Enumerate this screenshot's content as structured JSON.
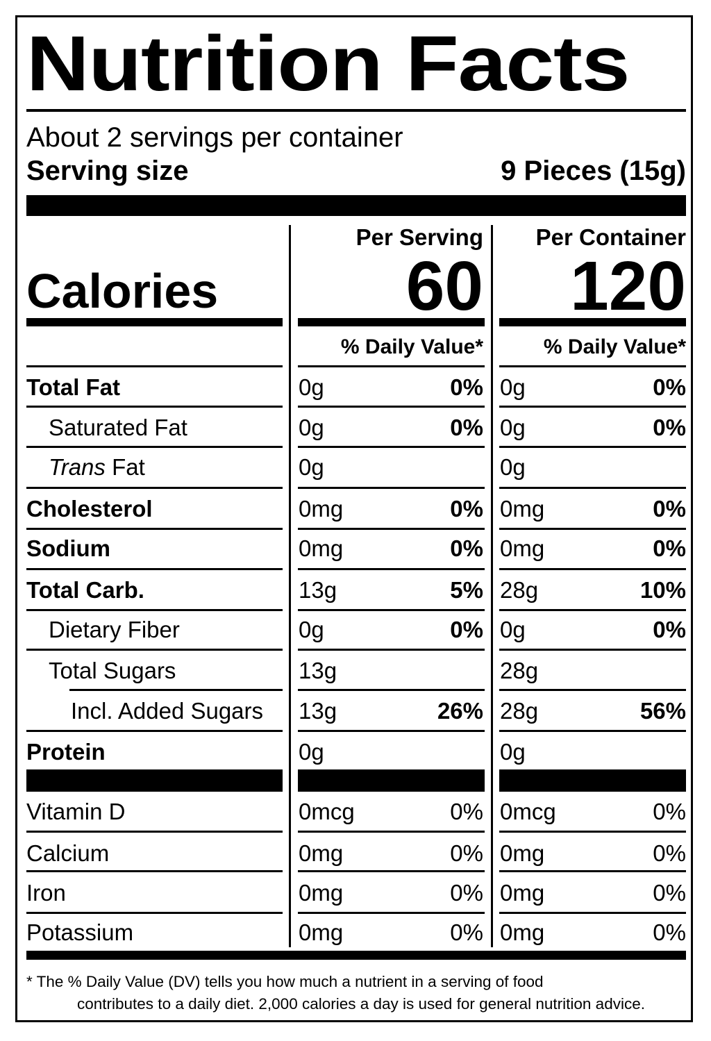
{
  "title": "Nutrition Facts",
  "servings_per_container": "About 2 servings per container",
  "serving_size_label": "Serving size",
  "serving_size_value": "9 Pieces (15g)",
  "per_serving_label": "Per Serving",
  "per_container_label": "Per Container",
  "calories_label": "Calories",
  "calories_per_serving": "60",
  "calories_per_container": "120",
  "daily_value_header": "% Daily Value*",
  "nutrients": [
    {
      "name": "Total Fat",
      "serving_amount": "0g",
      "serving_dv": "0%",
      "container_amount": "0g",
      "container_dv": "0%"
    },
    {
      "name": "Saturated Fat",
      "serving_amount": "0g",
      "serving_dv": "0%",
      "container_amount": "0g",
      "container_dv": "0%"
    },
    {
      "name_italic": "Trans",
      "name": " Fat",
      "serving_amount": "0g",
      "serving_dv": "",
      "container_amount": "0g",
      "container_dv": ""
    },
    {
      "name": "Cholesterol",
      "serving_amount": "0mg",
      "serving_dv": "0%",
      "container_amount": "0mg",
      "container_dv": "0%"
    },
    {
      "name": "Sodium",
      "serving_amount": "0mg",
      "serving_dv": "0%",
      "container_amount": "0mg",
      "container_dv": "0%"
    },
    {
      "name": "Total Carb.",
      "serving_amount": "13g",
      "serving_dv": "5%",
      "container_amount": "28g",
      "container_dv": "10%"
    },
    {
      "name": "Dietary Fiber",
      "serving_amount": "0g",
      "serving_dv": "0%",
      "container_amount": "0g",
      "container_dv": "0%"
    },
    {
      "name": "Total Sugars",
      "serving_amount": "13g",
      "serving_dv": "",
      "container_amount": "28g",
      "container_dv": ""
    },
    {
      "name": "Incl. Added Sugars",
      "serving_amount": "13g",
      "serving_dv": "26%",
      "container_amount": "28g",
      "container_dv": "56%"
    },
    {
      "name": "Protein",
      "serving_amount": "0g",
      "serving_dv": "",
      "container_amount": "0g",
      "container_dv": ""
    },
    {
      "name": "Vitamin D",
      "serving_amount": "0mcg",
      "serving_dv": "0%",
      "container_amount": "0mcg",
      "container_dv": "0%"
    },
    {
      "name": "Calcium",
      "serving_amount": "0mg",
      "serving_dv": "0%",
      "container_amount": "0mg",
      "container_dv": "0%"
    },
    {
      "name": "Iron",
      "serving_amount": "0mg",
      "serving_dv": "0%",
      "container_amount": "0mg",
      "container_dv": "0%"
    },
    {
      "name": "Potassium",
      "serving_amount": "0mg",
      "serving_dv": "0%",
      "container_amount": "0mg",
      "container_dv": "0%"
    }
  ],
  "footnote_line1": "* The % Daily Value (DV) tells you how much a nutrient in a serving of food",
  "footnote_line2": "contributes to a daily diet. 2,000 calories a day is used for general nutrition advice."
}
